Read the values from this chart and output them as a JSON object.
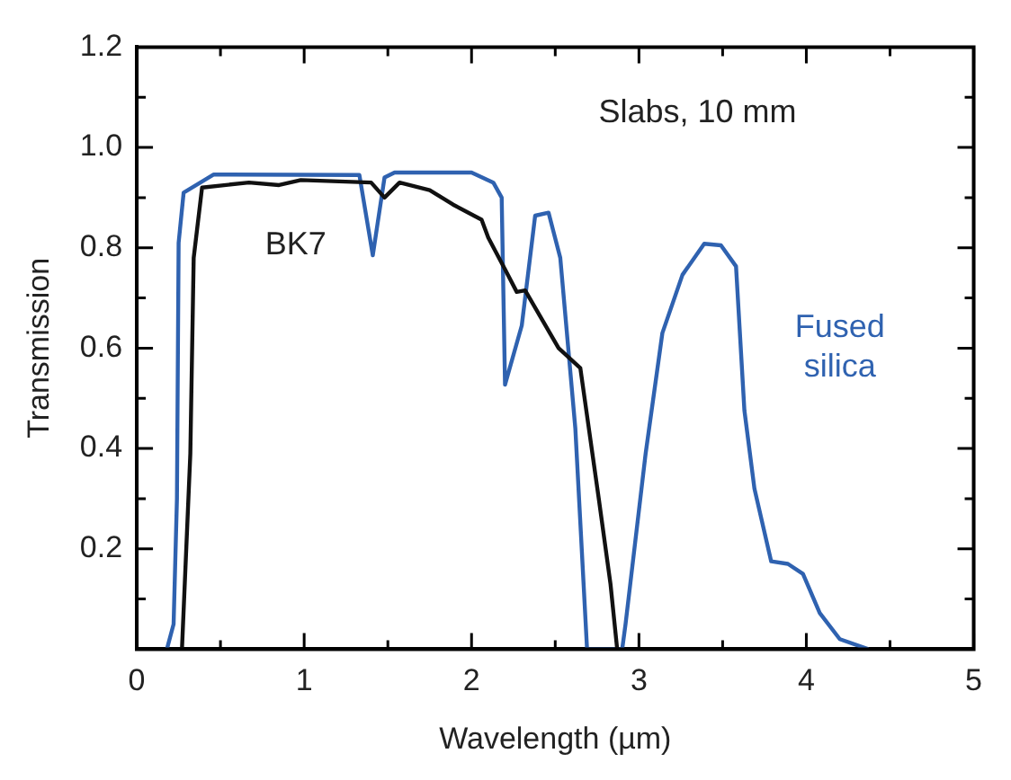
{
  "chart_data": {
    "type": "line",
    "xlabel": "Wavelength (µm)",
    "ylabel": "Transmission",
    "annotations": [
      "Slabs, 10 mm"
    ],
    "xlim": [
      0,
      5
    ],
    "xticks": [
      0,
      {
        "value": 0.5,
        "label": null
      },
      1,
      {
        "value": 1.5,
        "label": null
      },
      2,
      {
        "value": 2.5,
        "label": null
      },
      3,
      {
        "value": 3.5,
        "label": null
      },
      4,
      {
        "value": 4.5,
        "label": null
      },
      5
    ],
    "ylim": [
      0,
      1.2
    ],
    "yticks": [
      {
        "value": 0,
        "label": null
      },
      {
        "value": 0.1,
        "label": null
      },
      0.2,
      {
        "value": 0.3,
        "label": null
      },
      0.4,
      {
        "value": 0.5,
        "label": null
      },
      0.6,
      {
        "value": 0.7,
        "label": null
      },
      0.8,
      {
        "value": 0.9,
        "label": null
      },
      {
        "value": 1,
        "label": "1.0"
      },
      {
        "value": 1.1,
        "label": null
      },
      1.2
    ],
    "grid": false,
    "legend": false,
    "marker": "none",
    "line_style": "solid",
    "series": [
      {
        "name": "BK7",
        "color": "#111111",
        "x": [
          0.27,
          0.32,
          0.34,
          0.39,
          0.67,
          0.85,
          0.98,
          1.4,
          1.48,
          1.57,
          1.75,
          1.89,
          2.06,
          2.1,
          2.2,
          2.27,
          2.32,
          2.52,
          2.65,
          2.76,
          2.83,
          2.87
        ],
        "values": [
          0,
          0.39,
          0.78,
          0.92,
          0.93,
          0.925,
          0.935,
          0.93,
          0.9,
          0.93,
          0.915,
          0.886,
          0.856,
          0.82,
          0.757,
          0.712,
          0.715,
          0.6,
          0.56,
          0.3,
          0.13,
          0
        ]
      },
      {
        "name": "Fused silica",
        "color": "#2f62b0",
        "x": [
          0.18,
          0.22,
          0.24,
          0.25,
          0.28,
          0.46,
          1.33,
          1.41,
          1.48,
          1.54,
          2.0,
          2.13,
          2.18,
          2.2,
          2.3,
          2.38,
          2.46,
          2.53,
          2.62,
          2.69,
          2.9,
          2.92,
          3.04,
          3.14,
          3.26,
          3.39,
          3.49,
          3.58,
          3.63,
          3.69,
          3.79,
          3.89,
          3.98,
          4.08,
          4.2,
          4.37
        ],
        "values": [
          0,
          0.05,
          0.3,
          0.81,
          0.91,
          0.946,
          0.945,
          0.785,
          0.94,
          0.95,
          0.95,
          0.93,
          0.9,
          0.527,
          0.645,
          0.864,
          0.87,
          0.78,
          0.44,
          0,
          0,
          0.05,
          0.39,
          0.63,
          0.746,
          0.808,
          0.805,
          0.763,
          0.476,
          0.32,
          0.175,
          0.17,
          0.15,
          0.072,
          0.02,
          0
        ]
      }
    ]
  }
}
